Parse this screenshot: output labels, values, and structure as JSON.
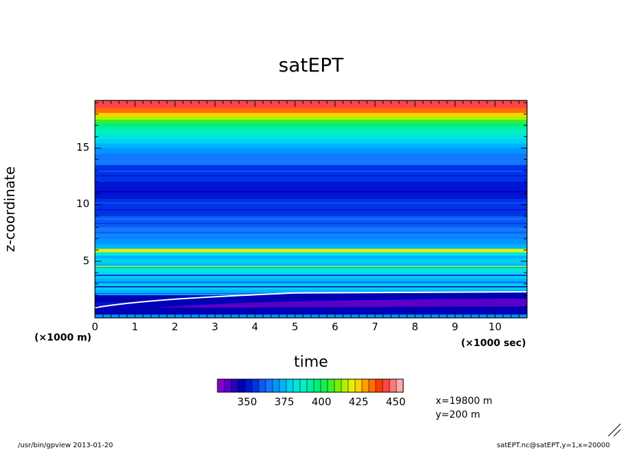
{
  "chart_data": {
    "type": "heatmap",
    "title": "satEPT",
    "xlabel": "time",
    "ylabel": "z-coordinate",
    "x_unit_label": "(×1000 sec)",
    "y_unit_label": "(×1000 m)",
    "x_ticks": [
      "0",
      "1",
      "2",
      "3",
      "4",
      "5",
      "6",
      "7",
      "8",
      "9",
      "10"
    ],
    "y_ticks": [
      "5",
      "10",
      "15"
    ],
    "xlim": [
      0,
      10.8
    ],
    "ylim": [
      0,
      19.2
    ],
    "colorbar": {
      "labels": [
        "350",
        "375",
        "400",
        "425",
        "450"
      ],
      "label_values": [
        350,
        375,
        400,
        425,
        450
      ],
      "min": 330,
      "max": 455,
      "step": 5,
      "colors": [
        "#8800cc",
        "#5a00c8",
        "#2a00c0",
        "#0000b4",
        "#0014d2",
        "#0032e6",
        "#0a5af5",
        "#1478ff",
        "#0096ff",
        "#00b4ff",
        "#00d2f0",
        "#00e6dc",
        "#00f0c8",
        "#00f0a0",
        "#00f07a",
        "#14f050",
        "#3cf028",
        "#78f000",
        "#b4f000",
        "#e6f000",
        "#ffd200",
        "#ffa000",
        "#ff6e00",
        "#ff3c00",
        "#ff4646",
        "#ff7878",
        "#ffaaaa"
      ]
    },
    "bands": [
      {
        "z0": 18.5,
        "z1": 19.2,
        "value": 450
      },
      {
        "z0": 18.1,
        "z1": 18.5,
        "value": 440
      },
      {
        "z0": 17.8,
        "z1": 18.1,
        "value": 430
      },
      {
        "z0": 17.5,
        "z1": 17.8,
        "value": 420
      },
      {
        "z0": 17.2,
        "z1": 17.5,
        "value": 410
      },
      {
        "z0": 16.9,
        "z1": 17.2,
        "value": 400
      },
      {
        "z0": 16.6,
        "z1": 16.9,
        "value": 395
      },
      {
        "z0": 16.2,
        "z1": 16.6,
        "value": 390
      },
      {
        "z0": 15.8,
        "z1": 16.2,
        "value": 385
      },
      {
        "z0": 15.4,
        "z1": 15.8,
        "value": 380
      },
      {
        "z0": 15.0,
        "z1": 15.4,
        "value": 375
      },
      {
        "z0": 14.5,
        "z1": 15.0,
        "value": 370
      },
      {
        "z0": 13.5,
        "z1": 14.5,
        "value": 365
      },
      {
        "z0": 12.0,
        "z1": 13.5,
        "value": 355
      },
      {
        "z0": 10.5,
        "z1": 12.0,
        "value": 350
      },
      {
        "z0": 9.0,
        "z1": 10.5,
        "value": 355
      },
      {
        "z0": 8.0,
        "z1": 9.0,
        "value": 360
      },
      {
        "z0": 7.0,
        "z1": 8.0,
        "value": 365
      },
      {
        "z0": 6.5,
        "z1": 7.0,
        "value": 370
      },
      {
        "z0": 6.1,
        "z1": 6.5,
        "value": 375
      },
      {
        "z0": 5.8,
        "z1": 6.1,
        "value": 425
      },
      {
        "z0": 5.5,
        "z1": 5.8,
        "value": 385
      },
      {
        "z0": 5.2,
        "z1": 5.5,
        "value": 375
      },
      {
        "z0": 4.8,
        "z1": 5.2,
        "value": 380
      },
      {
        "z0": 4.4,
        "z1": 4.8,
        "value": 375
      },
      {
        "z0": 4.0,
        "z1": 4.4,
        "value": 385
      },
      {
        "z0": 3.5,
        "z1": 4.0,
        "value": 380
      },
      {
        "z0": 3.0,
        "z1": 3.5,
        "value": 375
      },
      {
        "z0": 2.5,
        "z1": 3.0,
        "value": 380
      },
      {
        "z0": 2.0,
        "z1": 2.5,
        "value": 375
      },
      {
        "z0": 1.4,
        "z1": 2.0,
        "value": 345
      },
      {
        "z0": 0.8,
        "z1": 1.4,
        "value": 350
      },
      {
        "z0": 0.3,
        "z1": 0.8,
        "value": 355
      },
      {
        "z0": 0.0,
        "z1": 0.3,
        "value": 370
      }
    ],
    "grid": false
  },
  "info": {
    "x_position": "x=19800  m",
    "y_position": "y=200  m"
  },
  "footer": {
    "left": "/usr/bin/gpview  2013-01-20",
    "right": "satEPT.nc@satEPT,y=1,x=20000"
  }
}
